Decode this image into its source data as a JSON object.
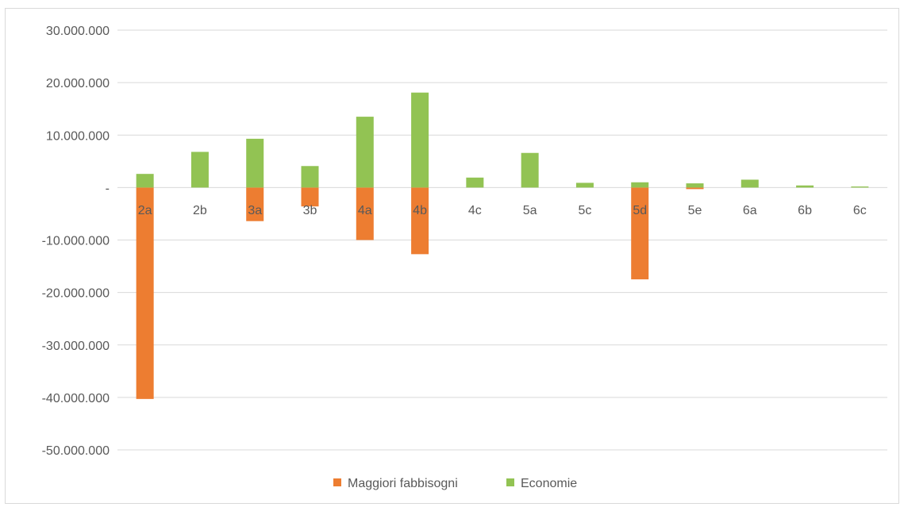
{
  "chart_data": {
    "type": "bar",
    "title": "",
    "xlabel": "",
    "ylabel": "",
    "categories": [
      "2a",
      "2b",
      "3a",
      "3b",
      "4a",
      "4b",
      "4c",
      "5a",
      "5c",
      "5d",
      "5e",
      "6a",
      "6b",
      "6c"
    ],
    "series": [
      {
        "name": "Maggiori fabbisogni",
        "color": "#ED7D31",
        "values": [
          -40300000,
          0,
          -6400000,
          -3600000,
          -10000000,
          -12700000,
          0,
          0,
          0,
          -17500000,
          -300000,
          0,
          0,
          0
        ]
      },
      {
        "name": "Economie",
        "color": "#92C353",
        "values": [
          2600000,
          6800000,
          9300000,
          4100000,
          13500000,
          18100000,
          1900000,
          6600000,
          900000,
          1000000,
          800000,
          1500000,
          400000,
          200000
        ]
      }
    ],
    "ylim": [
      -50000000,
      30000000
    ],
    "yticks": [
      30000000,
      20000000,
      10000000,
      0,
      -10000000,
      -20000000,
      -30000000,
      -40000000,
      -50000000
    ],
    "ytick_labels": [
      "30.000.000",
      "20.000.000",
      "10.000.000",
      "-",
      "-10.000.000",
      "-20.000.000",
      "-30.000.000",
      "-40.000.000",
      "-50.000.000"
    ],
    "grid": true,
    "legend_position": "bottom",
    "gridline_color": "#d9d9d9"
  }
}
